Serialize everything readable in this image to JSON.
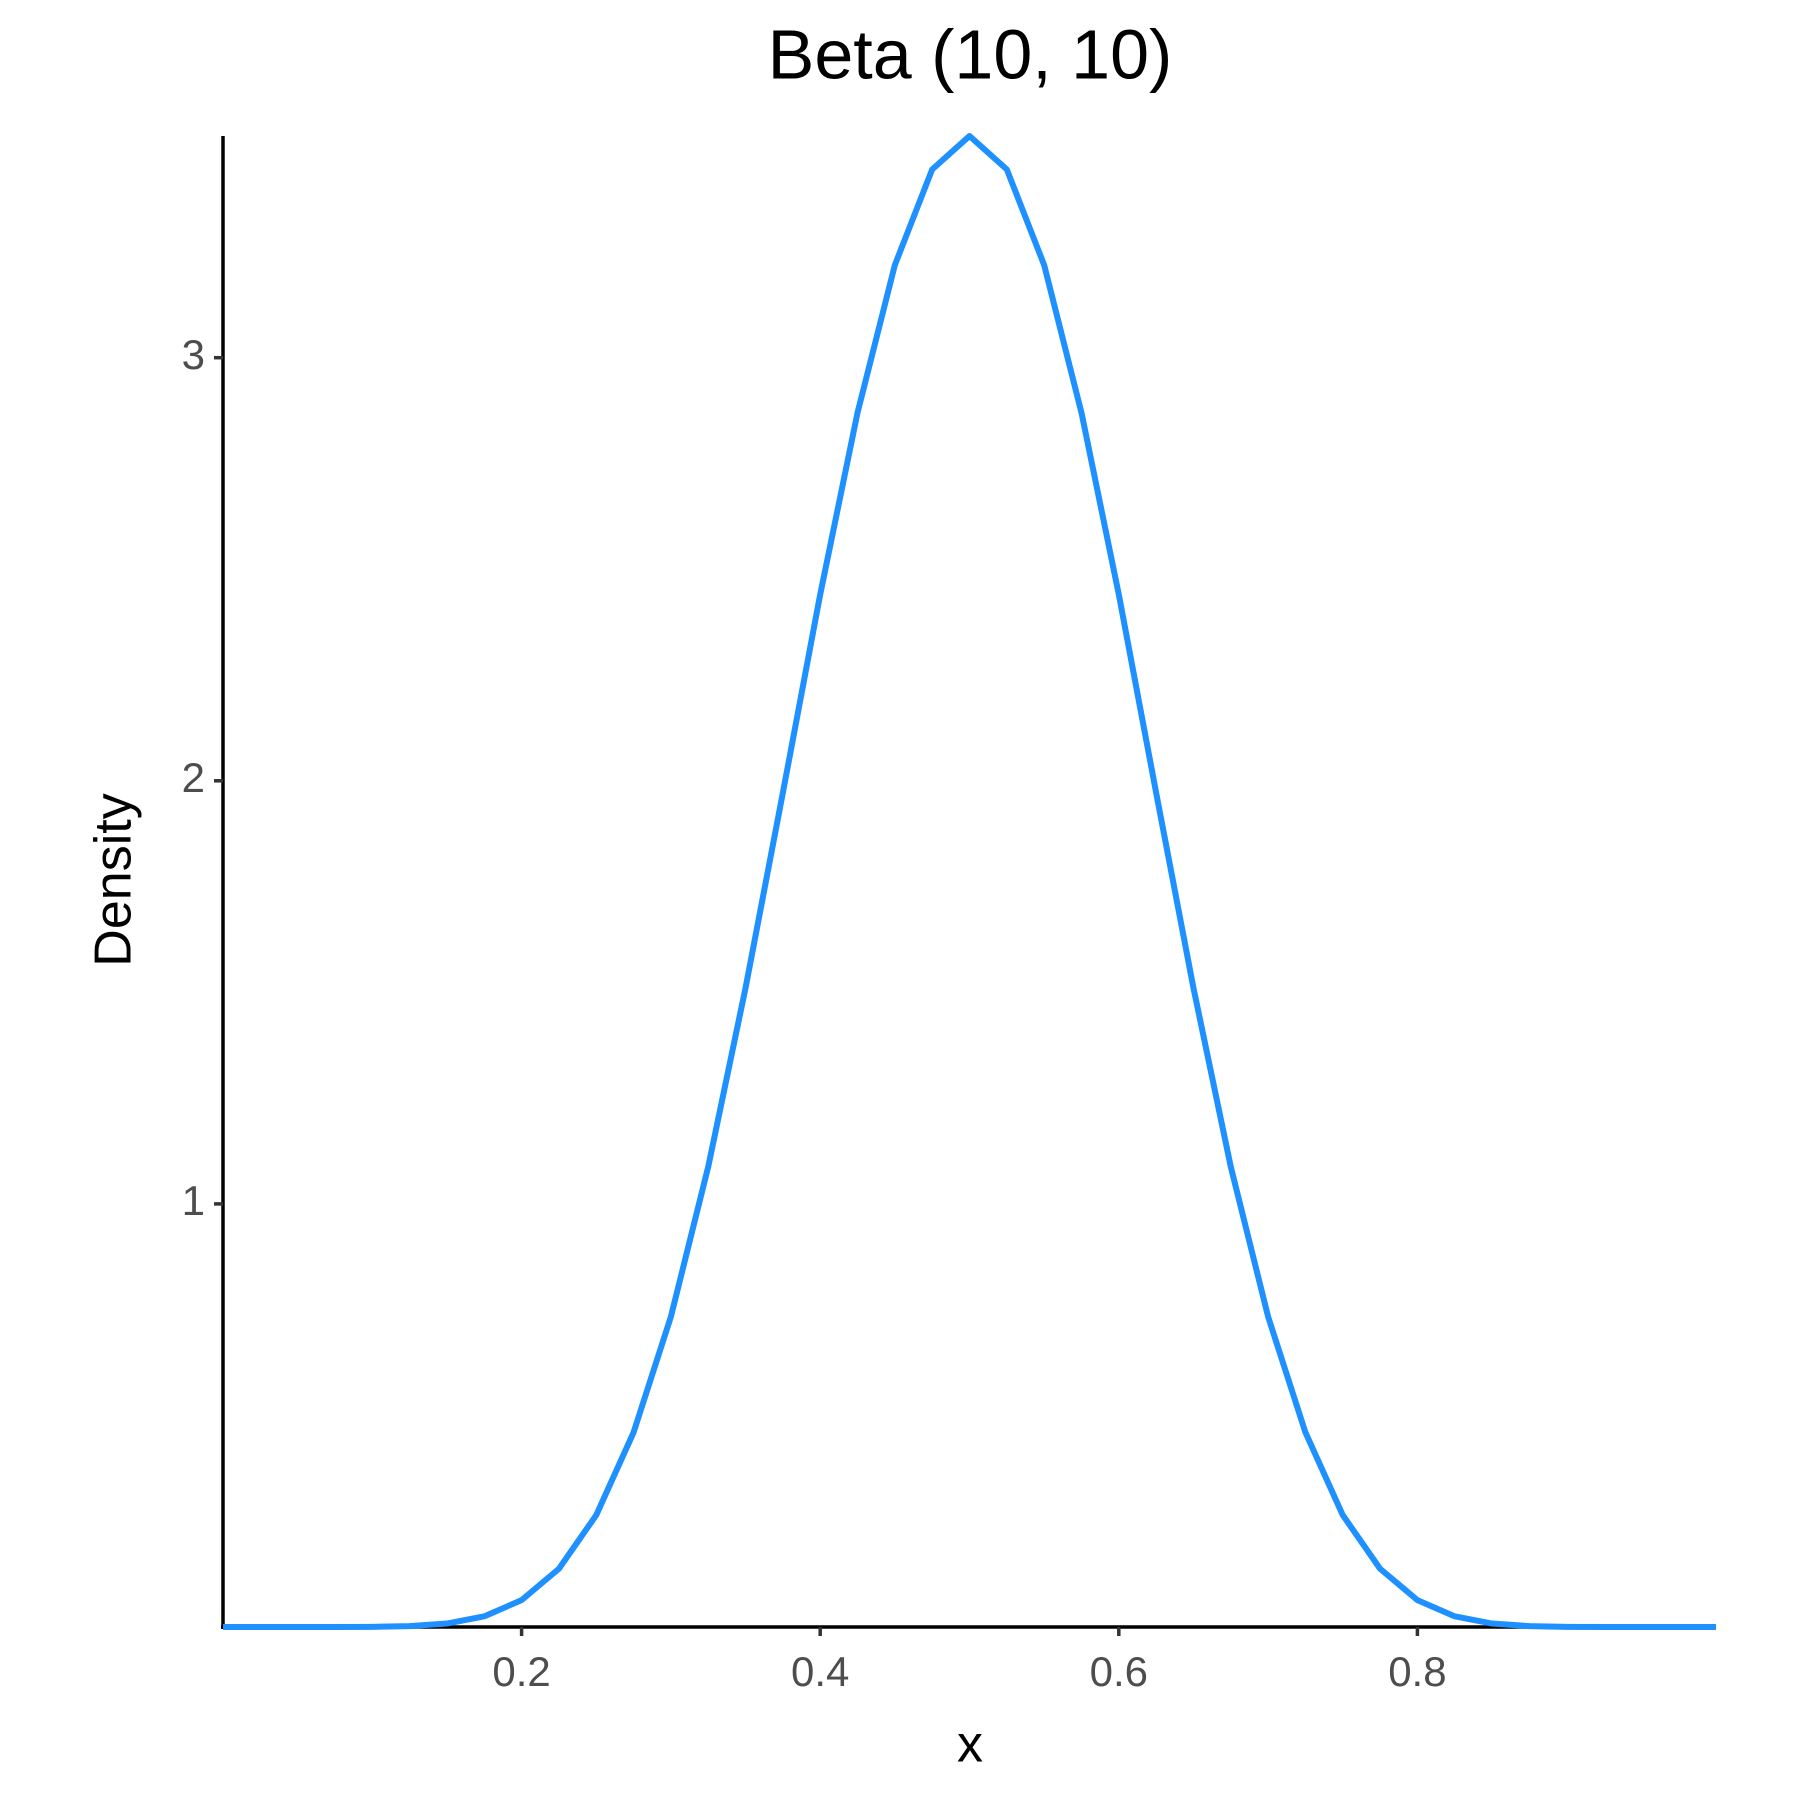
{
  "chart_data": {
    "type": "line",
    "title": "Beta (10, 10)",
    "x_label": "x",
    "y_label": "Density",
    "x": [
      0,
      0.025,
      0.05,
      0.075,
      0.1,
      0.125,
      0.15,
      0.175,
      0.2,
      0.225,
      0.25,
      0.275,
      0.3,
      0.325,
      0.35,
      0.375,
      0.4,
      0.425,
      0.45,
      0.475,
      0.5,
      0.525,
      0.55,
      0.575,
      0.6,
      0.625,
      0.65,
      0.675,
      0.7,
      0.725,
      0.75,
      0.775,
      0.8,
      0.825,
      0.85,
      0.875,
      0.9,
      0.925,
      0.95,
      0.975,
      1
    ],
    "series": [
      {
        "name": "Beta (10, 10)",
        "color": "#1E90FF",
        "values": [
          0,
          0,
          0,
          0,
          0.0004,
          0.0021,
          0.0082,
          0.0252,
          0.0635,
          0.1377,
          0.2645,
          0.4599,
          0.7335,
          1.0878,
          1.5105,
          1.972,
          2.4405,
          2.87,
          3.219,
          3.445,
          3.524,
          3.445,
          3.219,
          2.87,
          2.4405,
          1.972,
          1.5105,
          1.0878,
          0.7335,
          0.4599,
          0.2645,
          0.1377,
          0.0635,
          0.0252,
          0.0082,
          0.0021,
          0.0004,
          0,
          0,
          0,
          0
        ]
      }
    ],
    "xlim": [
      0,
      1
    ],
    "ylim": [
      0,
      3.524
    ],
    "xticks": [
      0.2,
      0.4,
      0.6,
      0.8
    ],
    "yticks": [
      1,
      2,
      3
    ],
    "grid": false
  }
}
